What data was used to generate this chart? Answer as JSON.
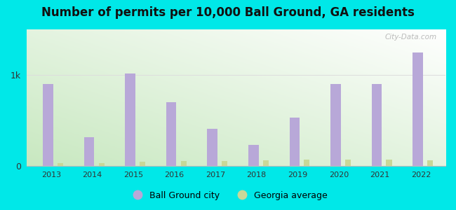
{
  "title": "Number of permits per 10,000 Ball Ground, GA residents",
  "years": [
    2013,
    2014,
    2015,
    2016,
    2017,
    2018,
    2019,
    2020,
    2021,
    2022
  ],
  "ball_ground": [
    900,
    320,
    1020,
    700,
    410,
    230,
    530,
    900,
    900,
    1250
  ],
  "georgia_avg": [
    30,
    35,
    50,
    55,
    60,
    65,
    75,
    70,
    70,
    65
  ],
  "bar_color_city": "#b8a8d8",
  "bar_color_state": "#c8d898",
  "background_outer": "#00e8e8",
  "bg_top_left": "#ffffff",
  "bg_bottom_right": "#c8e8c0",
  "title_fontsize": 12,
  "ytick_label": "1k",
  "ytick_value": 1000,
  "ylim": [
    0,
    1500
  ],
  "bar_width": 0.25,
  "legend_city": "Ball Ground city",
  "legend_state": "Georgia average",
  "watermark": "City-Data.com"
}
